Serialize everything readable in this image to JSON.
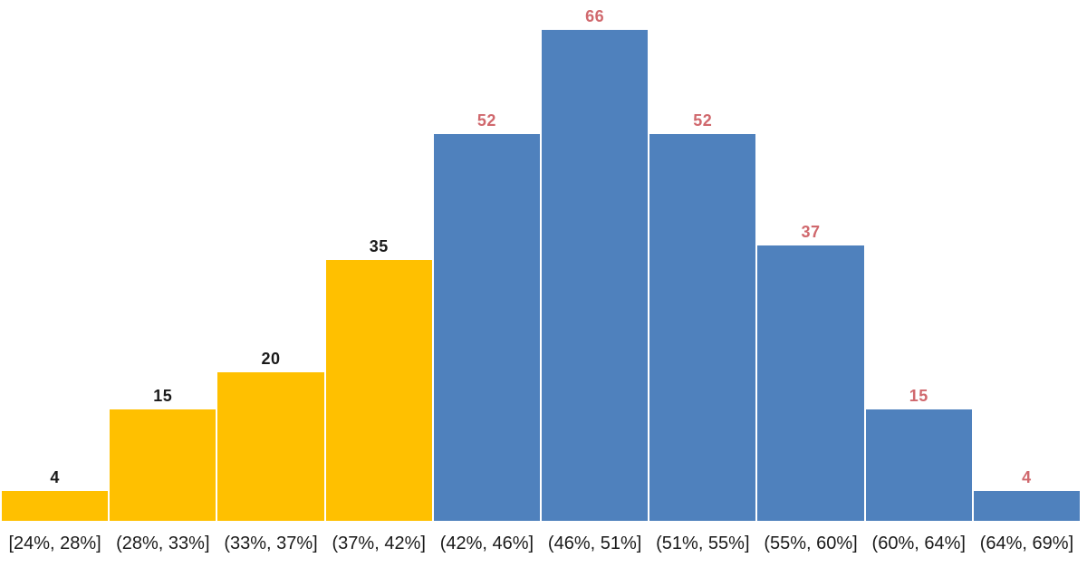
{
  "chart_data": {
    "type": "bar",
    "subtype": "histogram",
    "title": "",
    "xlabel": "",
    "ylabel": "",
    "categories": [
      "[24%, 28%]",
      "(28%, 33%]",
      "(33%, 37%]",
      "(37%, 42%]",
      "(42%, 46%]",
      "(46%, 51%]",
      "(51%, 55%]",
      "(55%, 60%]",
      "(60%, 64%]",
      "(64%, 69%]"
    ],
    "values": [
      4,
      15,
      20,
      35,
      52,
      66,
      52,
      37,
      15,
      4
    ],
    "bar_colors": [
      "#FFC000",
      "#FFC000",
      "#FFC000",
      "#FFC000",
      "#4F81BD",
      "#4F81BD",
      "#4F81BD",
      "#4F81BD",
      "#4F81BD",
      "#4F81BD"
    ],
    "value_label_colors": [
      "#1a1a1a",
      "#1a1a1a",
      "#1a1a1a",
      "#1a1a1a",
      "#D0686D",
      "#D0686D",
      "#D0686D",
      "#D0686D",
      "#D0686D",
      "#D0686D"
    ],
    "ylim": [
      0,
      70
    ],
    "grid": false,
    "legend": "none",
    "data_labels": true,
    "axis_labels_visible": {
      "x": true,
      "y": false
    }
  },
  "colors": {
    "background": "#FFFFFF",
    "orange_series": "#FFC000",
    "blue_series": "#4F81BD",
    "dark_value_label": "#1a1a1a",
    "rose_value_label": "#D0686D",
    "axis_text": "#1a1a1a"
  }
}
